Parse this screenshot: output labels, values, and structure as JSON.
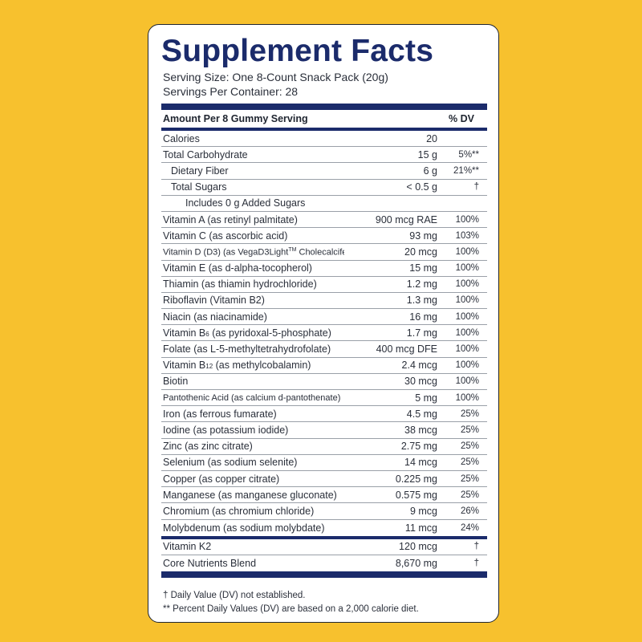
{
  "title": "Supplement Facts",
  "serving_size": "Serving Size: One 8-Count Snack Pack (20g)",
  "servings_per_container": "Servings Per Container: 28",
  "header": {
    "amount_per": "Amount Per 8 Gummy Serving",
    "dv": "% DV"
  },
  "rows_a": [
    {
      "name": "Calories",
      "amount": "20",
      "dv": ""
    },
    {
      "name": "Total Carbohydrate",
      "amount": "15 g",
      "dv": "5%**"
    },
    {
      "name": "Dietary Fiber",
      "amount": "6 g",
      "dv": "21%**"
    },
    {
      "name": "Total Sugars",
      "amount": "< 0.5 g",
      "dv": "†"
    },
    {
      "name": "Includes 0 g Added Sugars",
      "amount": "",
      "dv": ""
    },
    {
      "name": "Vitamin A (as retinyl palmitate)",
      "amount": "900 mcg RAE",
      "dv": "100%"
    },
    {
      "name": "Vitamin C (as ascorbic acid)",
      "amount": "93 mg",
      "dv": "103%"
    },
    {
      "name_pre": "Vitamin D (D3) (as VegaD3Light",
      "name_tm": "TM",
      "name_post": " Cholecalciferol)",
      "amount": "20 mcg",
      "dv": "100%"
    },
    {
      "name": "Vitamin E (as d-alpha-tocopherol)",
      "amount": "15 mg",
      "dv": "100%"
    },
    {
      "name": "Thiamin (as thiamin hydrochloride)",
      "amount": "1.2 mg",
      "dv": "100%"
    },
    {
      "name": "Riboflavin (Vitamin B2)",
      "amount": "1.3 mg",
      "dv": "100%"
    },
    {
      "name": "Niacin (as niacinamide)",
      "amount": "16 mg",
      "dv": "100%"
    },
    {
      "name_pre": "Vitamin B",
      "name_sub": "6",
      "name_post": " (as pyridoxal-5-phosphate)",
      "amount": "1.7 mg",
      "dv": "100%"
    },
    {
      "name": "Folate (as L-5-methyltetrahydrofolate)",
      "amount": "400 mcg DFE",
      "dv": "100%"
    },
    {
      "name_pre": "Vitamin B",
      "name_sub": "12",
      "name_post": " (as methylcobalamin)",
      "amount": "2.4 mcg",
      "dv": "100%"
    },
    {
      "name": "Biotin",
      "amount": "30 mcg",
      "dv": "100%"
    },
    {
      "name": "Pantothenic Acid (as calcium d-pantothenate)",
      "amount": "5 mg",
      "dv": "100%"
    },
    {
      "name": "Iron (as ferrous fumarate)",
      "amount": "4.5 mg",
      "dv": "25%"
    },
    {
      "name": "Iodine (as potassium iodide)",
      "amount": "38 mcg",
      "dv": "25%"
    },
    {
      "name": "Zinc (as zinc citrate)",
      "amount": "2.75 mg",
      "dv": "25%"
    },
    {
      "name": "Selenium (as sodium selenite)",
      "amount": "14 mcg",
      "dv": "25%"
    },
    {
      "name": "Copper (as copper citrate)",
      "amount": "0.225 mg",
      "dv": "25%"
    },
    {
      "name": "Manganese (as manganese gluconate)",
      "amount": "0.575 mg",
      "dv": "25%"
    },
    {
      "name": "Chromium (as chromium chloride)",
      "amount": "9 mcg",
      "dv": "26%"
    },
    {
      "name": "Molybdenum (as sodium molybdate)",
      "amount": "11 mcg",
      "dv": "24%"
    }
  ],
  "rows_b": [
    {
      "name": "Vitamin K2",
      "amount": "120 mcg",
      "dv": "†"
    },
    {
      "name": "Core Nutrients Blend",
      "amount": "8,670 mg",
      "dv": "†"
    }
  ],
  "footnotes": [
    "† Daily Value (DV) not established.",
    "** Percent Daily Values (DV) are based on a 2,000 calorie diet."
  ],
  "colors": {
    "background": "#f7c12e",
    "accent": "#1b2b6b"
  }
}
